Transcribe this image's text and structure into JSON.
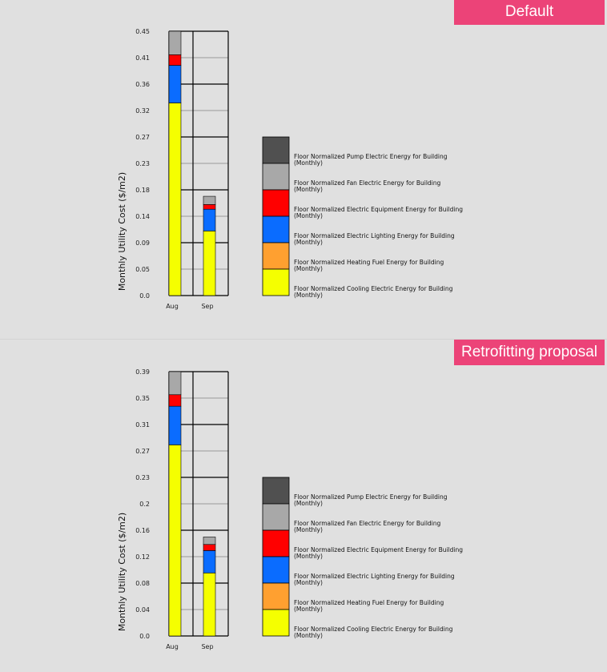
{
  "colors": {
    "badge": "#ec4378",
    "background": "#e0e0e0"
  },
  "chart_data": [
    {
      "type": "bar",
      "stacked": true,
      "title": "Default",
      "ylabel": "Monthly Utility Cost ($/m2)",
      "ylim": [
        0,
        0.45
      ],
      "yticks": [
        "0.0",
        "0.05",
        "0.09",
        "0.14",
        "0.18",
        "0.23",
        "0.27",
        "0.32",
        "0.36",
        "0.41",
        "0.45"
      ],
      "categories": [
        "Aug",
        "Sep"
      ],
      "grid": true,
      "legend_position": "right",
      "series": [
        {
          "name": "Floor Normalized Cooling Electric Energy for Building",
          "sub": "(Monthly)",
          "color": "#f5ff00",
          "values": [
            0.328,
            0.11
          ]
        },
        {
          "name": "Floor Normalized Heating Fuel Energy for Building",
          "sub": "(Monthly)",
          "color": "#ffa030",
          "values": [
            0,
            0
          ]
        },
        {
          "name": "Floor Normalized Electric Lighting Energy for Building",
          "sub": "(Monthly)",
          "color": "#0a6cff",
          "values": [
            0.064,
            0.037
          ]
        },
        {
          "name": "Floor Normalized Electric Equipment Energy for Building",
          "sub": "(Monthly)",
          "color": "#ff0000",
          "values": [
            0.018,
            0.008
          ]
        },
        {
          "name": "Floor Normalized Fan Electric Energy for Building",
          "sub": "(Monthly)",
          "color": "#a8a8a8",
          "values": [
            0.04,
            0.014
          ]
        },
        {
          "name": "Floor Normalized Pump Electric Energy for Building",
          "sub": "(Monthly)",
          "color": "#505050",
          "values": [
            0,
            0
          ]
        }
      ]
    },
    {
      "type": "bar",
      "stacked": true,
      "title": "Retrofitting proposal",
      "ylabel": "Monthly Utility Cost ($/m2)",
      "ylim": [
        0,
        0.39
      ],
      "yticks": [
        "0.0",
        "0.04",
        "0.08",
        "0.12",
        "0.16",
        "0.2",
        "0.23",
        "0.27",
        "0.31",
        "0.35",
        "0.39"
      ],
      "categories": [
        "Aug",
        "Sep"
      ],
      "grid": true,
      "legend_position": "right",
      "series": [
        {
          "name": "Floor Normalized Cooling Electric Energy for Building",
          "sub": "(Monthly)",
          "color": "#f5ff00",
          "values": [
            0.282,
            0.093
          ]
        },
        {
          "name": "Floor Normalized Heating Fuel Energy for Building",
          "sub": "(Monthly)",
          "color": "#ffa030",
          "values": [
            0,
            0
          ]
        },
        {
          "name": "Floor Normalized Electric Lighting Energy for Building",
          "sub": "(Monthly)",
          "color": "#0a6cff",
          "values": [
            0.057,
            0.033
          ]
        },
        {
          "name": "Floor Normalized Electric Equipment Energy for Building",
          "sub": "(Monthly)",
          "color": "#ff0000",
          "values": [
            0.017,
            0.009
          ]
        },
        {
          "name": "Floor Normalized Fan Electric Energy for Building",
          "sub": "(Monthly)",
          "color": "#a8a8a8",
          "values": [
            0.034,
            0.011
          ]
        },
        {
          "name": "Floor Normalized Pump Electric Energy for Building",
          "sub": "(Monthly)",
          "color": "#505050",
          "values": [
            0,
            0
          ]
        }
      ]
    }
  ]
}
